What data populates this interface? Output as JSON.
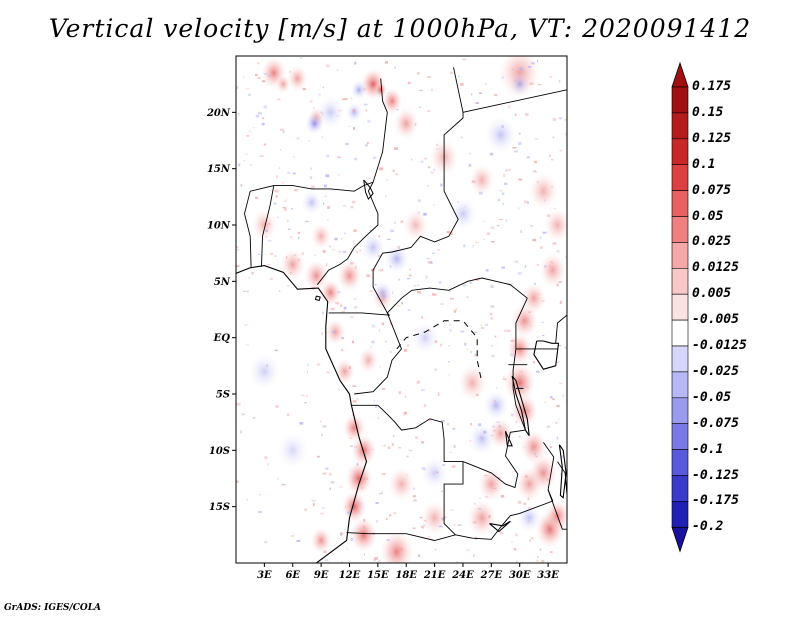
{
  "title": "Vertical velocity [m/s] at 1000hPa, VT: 2020091412",
  "credit": "GrADS: IGES/COLA",
  "map": {
    "projection": "latlon",
    "lon_range": [
      0,
      35
    ],
    "lat_range": [
      -20,
      25
    ],
    "lat_ticks": [
      {
        "lat": 20,
        "label": "20N"
      },
      {
        "lat": 15,
        "label": "15N"
      },
      {
        "lat": 10,
        "label": "10N"
      },
      {
        "lat": 5,
        "label": "5N"
      },
      {
        "lat": 0,
        "label": "EQ"
      },
      {
        "lat": -5,
        "label": "5S"
      },
      {
        "lat": -10,
        "label": "10S"
      },
      {
        "lat": -15,
        "label": "15S"
      }
    ],
    "lon_ticks": [
      {
        "lon": 3,
        "label": "3E"
      },
      {
        "lon": 6,
        "label": "6E"
      },
      {
        "lon": 9,
        "label": "9E"
      },
      {
        "lon": 12,
        "label": "12E"
      },
      {
        "lon": 15,
        "label": "15E"
      },
      {
        "lon": 18,
        "label": "18E"
      },
      {
        "lon": 21,
        "label": "21E"
      },
      {
        "lon": 24,
        "label": "24E"
      },
      {
        "lon": 27,
        "label": "27E"
      },
      {
        "lon": 30,
        "label": "30E"
      },
      {
        "lon": 33,
        "label": "33E"
      }
    ],
    "coastline": [
      [
        8.5,
        -20
      ],
      [
        11.7,
        -18
      ],
      [
        12,
        -16
      ],
      [
        13,
        -13
      ],
      [
        13.8,
        -11
      ],
      [
        13,
        -8.8
      ],
      [
        12.2,
        -6
      ],
      [
        12,
        -5
      ],
      [
        11,
        -3.8
      ],
      [
        9.5,
        -1
      ],
      [
        9.5,
        1
      ],
      [
        9.7,
        3.2
      ],
      [
        8.7,
        4.4
      ],
      [
        6.5,
        4.3
      ],
      [
        5,
        5.8
      ],
      [
        3,
        6.4
      ],
      [
        1.5,
        6.2
      ],
      [
        0,
        5.7
      ]
    ],
    "borders": [
      [
        [
          23,
          24
        ],
        [
          24,
          20
        ],
        [
          24,
          19.5
        ],
        [
          22,
          18
        ],
        [
          22,
          13
        ],
        [
          23.5,
          10.5
        ],
        [
          22.5,
          9
        ],
        [
          21,
          8.5
        ],
        [
          19.5,
          9
        ],
        [
          18.5,
          8
        ],
        [
          16.5,
          7.6
        ],
        [
          15.5,
          7.5
        ],
        [
          14.5,
          6
        ],
        [
          14.5,
          4.5
        ],
        [
          16,
          2.2
        ],
        [
          16.2,
          2
        ],
        [
          13.3,
          2.2
        ],
        [
          11.3,
          2.2
        ],
        [
          9.8,
          2.2
        ]
      ],
      [
        [
          15.3,
          23
        ],
        [
          15.5,
          21
        ],
        [
          16,
          20
        ],
        [
          15.5,
          16.5
        ],
        [
          14.5,
          13.8
        ],
        [
          13.5,
          13.5
        ],
        [
          12.5,
          13
        ],
        [
          10,
          13.2
        ],
        [
          8,
          13.2
        ],
        [
          6,
          13.5
        ],
        [
          4,
          13.5
        ],
        [
          3.6,
          11.7
        ],
        [
          2.8,
          9
        ],
        [
          2.7,
          6.3
        ]
      ],
      [
        [
          4,
          13.5
        ],
        [
          1.5,
          13
        ],
        [
          0.9,
          11
        ],
        [
          1.5,
          9
        ],
        [
          1.6,
          6.2
        ]
      ],
      [
        [
          14.5,
          13.8
        ],
        [
          14,
          13
        ],
        [
          15,
          11
        ],
        [
          15,
          10
        ],
        [
          13.7,
          9
        ],
        [
          12.5,
          8
        ],
        [
          11.8,
          7
        ],
        [
          11,
          6.5
        ],
        [
          9.8,
          6
        ],
        [
          8.6,
          4.7
        ]
      ],
      [
        [
          16,
          2.2
        ],
        [
          17.5,
          3.5
        ],
        [
          18.6,
          4.2
        ],
        [
          20.5,
          4.4
        ],
        [
          22.5,
          4.2
        ],
        [
          24.5,
          5
        ],
        [
          26,
          5.3
        ],
        [
          27.5,
          5
        ],
        [
          29,
          4.7
        ],
        [
          30.8,
          3.5
        ]
      ],
      [
        [
          16,
          2.2
        ],
        [
          17.5,
          -1
        ],
        [
          16.5,
          -2
        ],
        [
          16,
          -3.5
        ],
        [
          14.5,
          -4.8
        ],
        [
          12.5,
          -5
        ]
      ],
      [
        [
          12.2,
          -6
        ],
        [
          15,
          -6
        ],
        [
          16,
          -6.8
        ],
        [
          16.8,
          -7.5
        ],
        [
          17.5,
          -8.2
        ],
        [
          19,
          -8
        ],
        [
          20.5,
          -7.2
        ],
        [
          21.8,
          -7.5
        ],
        [
          22,
          -9
        ],
        [
          22,
          -11
        ],
        [
          24,
          -11
        ],
        [
          24,
          -13
        ],
        [
          22,
          -13
        ],
        [
          22,
          -16.5
        ],
        [
          23.2,
          -17.5
        ]
      ],
      [
        [
          11.7,
          -17.3
        ],
        [
          14,
          -17.4
        ],
        [
          18,
          -17.4
        ],
        [
          21,
          -18
        ],
        [
          23.2,
          -17.5
        ],
        [
          25,
          -17.8
        ]
      ],
      [
        [
          24,
          -11
        ],
        [
          25.5,
          -11.5
        ],
        [
          27,
          -12
        ],
        [
          28.5,
          -13
        ],
        [
          29.5,
          -13.3
        ],
        [
          29.8,
          -12.1
        ],
        [
          28.5,
          -10.5
        ],
        [
          29,
          -8.4
        ],
        [
          30.6,
          -8.2
        ]
      ],
      [
        [
          30.8,
          3.5
        ],
        [
          29.6,
          1.3
        ],
        [
          29.6,
          -1
        ],
        [
          29.3,
          -2.9
        ],
        [
          29.3,
          -4.5
        ],
        [
          29.6,
          -6
        ],
        [
          30.6,
          -8.2
        ]
      ],
      [
        [
          29.6,
          -1
        ],
        [
          31,
          -1
        ],
        [
          34,
          -1
        ]
      ],
      [
        [
          33.8,
          -0.5
        ],
        [
          34,
          1.3
        ],
        [
          35,
          2
        ]
      ],
      [
        [
          28.8,
          -2.4
        ],
        [
          30.8,
          -2.4
        ]
      ],
      [
        [
          29.6,
          -4.5
        ],
        [
          30.4,
          -4.5
        ]
      ],
      [
        [
          24,
          20
        ],
        [
          35,
          22
        ]
      ],
      [
        [
          32.5,
          -9.3
        ],
        [
          33.6,
          -10.6
        ],
        [
          33,
          -13.5
        ],
        [
          33.5,
          -14.5
        ],
        [
          30,
          -15.6
        ],
        [
          29,
          -15.8
        ],
        [
          28,
          -16.8
        ],
        [
          27,
          -17.9
        ],
        [
          25,
          -17.8
        ]
      ],
      [
        [
          33,
          -13.5
        ],
        [
          34.5,
          -17
        ],
        [
          35,
          -17
        ]
      ],
      [
        [
          34,
          -11
        ],
        [
          34.8,
          -12
        ],
        [
          35,
          -14
        ]
      ]
    ],
    "lakes": [
      [
        [
          29.2,
          -3.4
        ],
        [
          29.6,
          -5
        ],
        [
          30.2,
          -6.5
        ],
        [
          30.6,
          -8.2
        ],
        [
          31,
          -8.7
        ],
        [
          30.8,
          -7.2
        ],
        [
          30.2,
          -5.5
        ],
        [
          29.6,
          -3.8
        ],
        [
          29.2,
          -3.4
        ]
      ],
      [
        [
          34.2,
          -9.5
        ],
        [
          34.5,
          -11.5
        ],
        [
          34.3,
          -14
        ],
        [
          34.6,
          -14.2
        ],
        [
          34.9,
          -12
        ],
        [
          34.6,
          -10
        ],
        [
          34.2,
          -9.5
        ]
      ],
      [
        [
          31.8,
          -0.3
        ],
        [
          32.5,
          -0.3
        ],
        [
          33.4,
          -0.5
        ],
        [
          34.1,
          -0.5
        ],
        [
          33.8,
          -2.5
        ],
        [
          32.5,
          -2.8
        ],
        [
          31.5,
          -1.5
        ],
        [
          31.8,
          -0.3
        ]
      ],
      [
        [
          28.5,
          -8.3
        ],
        [
          28.7,
          -9.6
        ],
        [
          29.2,
          -9.6
        ],
        [
          28.5,
          -8.3
        ]
      ],
      [
        [
          26.8,
          -16.5
        ],
        [
          28.2,
          -16.7
        ],
        [
          29,
          -16.3
        ],
        [
          27.8,
          -17.2
        ],
        [
          26.8,
          -16.5
        ]
      ]
    ],
    "features": [
      {
        "name": "lake-chad",
        "type": "wiggle",
        "pts": [
          [
            13.5,
            14
          ],
          [
            14.2,
            13.3
          ],
          [
            14.5,
            12.8
          ],
          [
            14,
            12.3
          ],
          [
            13.7,
            12.9
          ],
          [
            13.5,
            14
          ]
        ]
      },
      {
        "name": "bioko",
        "type": "wiggle",
        "pts": [
          [
            8.5,
            3.7
          ],
          [
            8.9,
            3.6
          ],
          [
            8.8,
            3.3
          ],
          [
            8.4,
            3.4
          ],
          [
            8.5,
            3.7
          ]
        ]
      },
      {
        "name": "congo-river",
        "type": "wiggle",
        "pts": [
          [
            17,
            -1
          ],
          [
            18,
            0
          ],
          [
            20,
            0.5
          ],
          [
            22,
            1.5
          ],
          [
            24,
            1.5
          ],
          [
            25.5,
            0
          ],
          [
            25.5,
            -2
          ],
          [
            26,
            -4
          ]
        ]
      }
    ],
    "wind_pos": [
      {
        "lon": 33.2,
        "lat": -17,
        "r": 1.4,
        "s": 0.9
      },
      {
        "lon": 34,
        "lat": -15.8,
        "r": 1.2,
        "s": 0.8
      },
      {
        "lon": 32.5,
        "lat": -12,
        "r": 1.4,
        "s": 0.7
      },
      {
        "lon": 31.5,
        "lat": -9.7,
        "r": 1.3,
        "s": 0.7
      },
      {
        "lon": 30.5,
        "lat": -6.5,
        "r": 1.3,
        "s": 0.8
      },
      {
        "lon": 30,
        "lat": -4,
        "r": 1.5,
        "s": 0.9
      },
      {
        "lon": 30,
        "lat": -1,
        "r": 1.2,
        "s": 0.8
      },
      {
        "lon": 30.5,
        "lat": 1.5,
        "r": 1.3,
        "s": 0.7
      },
      {
        "lon": 31.5,
        "lat": 3.5,
        "r": 1.2,
        "s": 0.6
      },
      {
        "lon": 33.5,
        "lat": 6,
        "r": 1.3,
        "s": 0.6
      },
      {
        "lon": 34,
        "lat": 10,
        "r": 1.3,
        "s": 0.5
      },
      {
        "lon": 32.5,
        "lat": 13,
        "r": 1.4,
        "s": 0.5
      },
      {
        "lon": 17,
        "lat": -19,
        "r": 1.6,
        "s": 0.8
      },
      {
        "lon": 13.5,
        "lat": -17.5,
        "r": 1.3,
        "s": 0.9
      },
      {
        "lon": 12.5,
        "lat": -15,
        "r": 1.2,
        "s": 1.0
      },
      {
        "lon": 13,
        "lat": -12.5,
        "r": 1.3,
        "s": 1.0
      },
      {
        "lon": 13.5,
        "lat": -10,
        "r": 1.2,
        "s": 0.9
      },
      {
        "lon": 12.5,
        "lat": -8,
        "r": 1.1,
        "s": 0.8
      },
      {
        "lon": 11.5,
        "lat": -3,
        "r": 1.0,
        "s": 0.6
      },
      {
        "lon": 10.5,
        "lat": 0.5,
        "r": 1.0,
        "s": 0.6
      },
      {
        "lon": 10,
        "lat": 4,
        "r": 1.0,
        "s": 0.8
      },
      {
        "lon": 8.5,
        "lat": 5.5,
        "r": 1.2,
        "s": 0.7
      },
      {
        "lon": 6,
        "lat": 6.5,
        "r": 1.2,
        "s": 0.6
      },
      {
        "lon": 12,
        "lat": 5.5,
        "r": 1.2,
        "s": 0.7
      },
      {
        "lon": 15.5,
        "lat": 3.5,
        "r": 1.0,
        "s": 0.5
      },
      {
        "lon": 14,
        "lat": -2,
        "r": 1.0,
        "s": 0.5
      },
      {
        "lon": 9,
        "lat": -18,
        "r": 1.0,
        "s": 0.7
      },
      {
        "lon": 26,
        "lat": -16,
        "r": 1.4,
        "s": 0.6
      },
      {
        "lon": 21,
        "lat": -16,
        "r": 1.3,
        "s": 0.5
      },
      {
        "lon": 27,
        "lat": -13,
        "r": 1.3,
        "s": 0.6
      },
      {
        "lon": 25,
        "lat": -4,
        "r": 1.4,
        "s": 0.5
      },
      {
        "lon": 17.5,
        "lat": -13,
        "r": 1.3,
        "s": 0.5
      },
      {
        "lon": 28,
        "lat": -8.5,
        "r": 1.2,
        "s": 0.6
      },
      {
        "lon": 31,
        "lat": -13,
        "r": 1.3,
        "s": 0.6
      },
      {
        "lon": 14.5,
        "lat": 22.5,
        "r": 1.2,
        "s": 1.0
      },
      {
        "lon": 15.3,
        "lat": 22,
        "r": 0.6,
        "s": 1.0
      },
      {
        "lon": 16.5,
        "lat": 21,
        "r": 1.0,
        "s": 0.8
      },
      {
        "lon": 18,
        "lat": 19,
        "r": 1.2,
        "s": 0.6
      },
      {
        "lon": 4,
        "lat": 23.5,
        "r": 1.2,
        "s": 0.8
      },
      {
        "lon": 5,
        "lat": 22.5,
        "r": 0.7,
        "s": 0.6
      },
      {
        "lon": 30,
        "lat": 23.5,
        "r": 2.0,
        "s": 0.6
      },
      {
        "lon": 22,
        "lat": 16,
        "r": 1.4,
        "s": 0.5
      },
      {
        "lon": 26,
        "lat": 14,
        "r": 1.2,
        "s": 0.5
      },
      {
        "lon": 8.5,
        "lat": 19.5,
        "r": 0.8,
        "s": 0.6
      },
      {
        "lon": 9,
        "lat": 9,
        "r": 1.0,
        "s": 0.5
      },
      {
        "lon": 3,
        "lat": 10,
        "r": 1.2,
        "s": 0.5
      },
      {
        "lon": 19,
        "lat": 10,
        "r": 1.2,
        "s": 0.45
      },
      {
        "lon": 6.5,
        "lat": 23,
        "r": 1.0,
        "s": 0.6
      }
    ],
    "wind_neg": [
      {
        "lon": 8.3,
        "lat": 19,
        "r": 0.9,
        "s": 0.9
      },
      {
        "lon": 13,
        "lat": 22,
        "r": 0.8,
        "s": 0.7
      },
      {
        "lon": 12.5,
        "lat": 20,
        "r": 0.8,
        "s": 0.6
      },
      {
        "lon": 8,
        "lat": 12,
        "r": 1.0,
        "s": 0.5
      },
      {
        "lon": 14.5,
        "lat": 8,
        "r": 1.2,
        "s": 0.5
      },
      {
        "lon": 17,
        "lat": 7,
        "r": 1.2,
        "s": 0.6
      },
      {
        "lon": 15.5,
        "lat": 4,
        "r": 1.0,
        "s": 0.5
      },
      {
        "lon": 27.5,
        "lat": -6,
        "r": 1.2,
        "s": 0.6
      },
      {
        "lon": 26,
        "lat": -9,
        "r": 1.3,
        "s": 0.5
      },
      {
        "lon": 10,
        "lat": 20,
        "r": 1.3,
        "s": 0.45
      },
      {
        "lon": 24,
        "lat": 11,
        "r": 1.3,
        "s": 0.45
      },
      {
        "lon": 3,
        "lat": -3,
        "r": 1.5,
        "s": 0.4
      },
      {
        "lon": 6,
        "lat": -10,
        "r": 1.5,
        "s": 0.35
      },
      {
        "lon": 28,
        "lat": 18,
        "r": 1.5,
        "s": 0.5
      },
      {
        "lon": 30,
        "lat": 22.5,
        "r": 1.0,
        "s": 0.6
      },
      {
        "lon": 21,
        "lat": -12,
        "r": 1.3,
        "s": 0.4
      },
      {
        "lon": 31,
        "lat": -16,
        "r": 1.2,
        "s": 0.5
      },
      {
        "lon": 20,
        "lat": 0,
        "r": 1.3,
        "s": 0.4
      }
    ]
  },
  "colorbar": {
    "levels": [
      {
        "label": "0.175",
        "color": "#a01010"
      },
      {
        "label": "0.15",
        "color": "#b51c1c"
      },
      {
        "label": "0.125",
        "color": "#c82828"
      },
      {
        "label": "0.1",
        "color": "#dc4040"
      },
      {
        "label": "0.075",
        "color": "#e86060"
      },
      {
        "label": "0.05",
        "color": "#ef8080"
      },
      {
        "label": "0.025",
        "color": "#f4a8a8"
      },
      {
        "label": "0.0125",
        "color": "#f8c8c8"
      },
      {
        "label": "0.005",
        "color": "#fbe2e2"
      },
      {
        "label": "-0.005",
        "color": "#ffffff"
      },
      {
        "label": "-0.0125",
        "color": "#d6d6fb"
      },
      {
        "label": "-0.025",
        "color": "#b8b8f6"
      },
      {
        "label": "-0.05",
        "color": "#9a9aee"
      },
      {
        "label": "-0.075",
        "color": "#7a7ae6"
      },
      {
        "label": "-0.1",
        "color": "#5a5adc"
      },
      {
        "label": "-0.125",
        "color": "#3a3acc"
      },
      {
        "label": "-0.175",
        "color": "#2020b4"
      },
      {
        "label": "-0.2",
        "color": "#10109c"
      }
    ],
    "top_arrow_color": "#a01010",
    "bottom_arrow_color": "#1a10a0"
  }
}
